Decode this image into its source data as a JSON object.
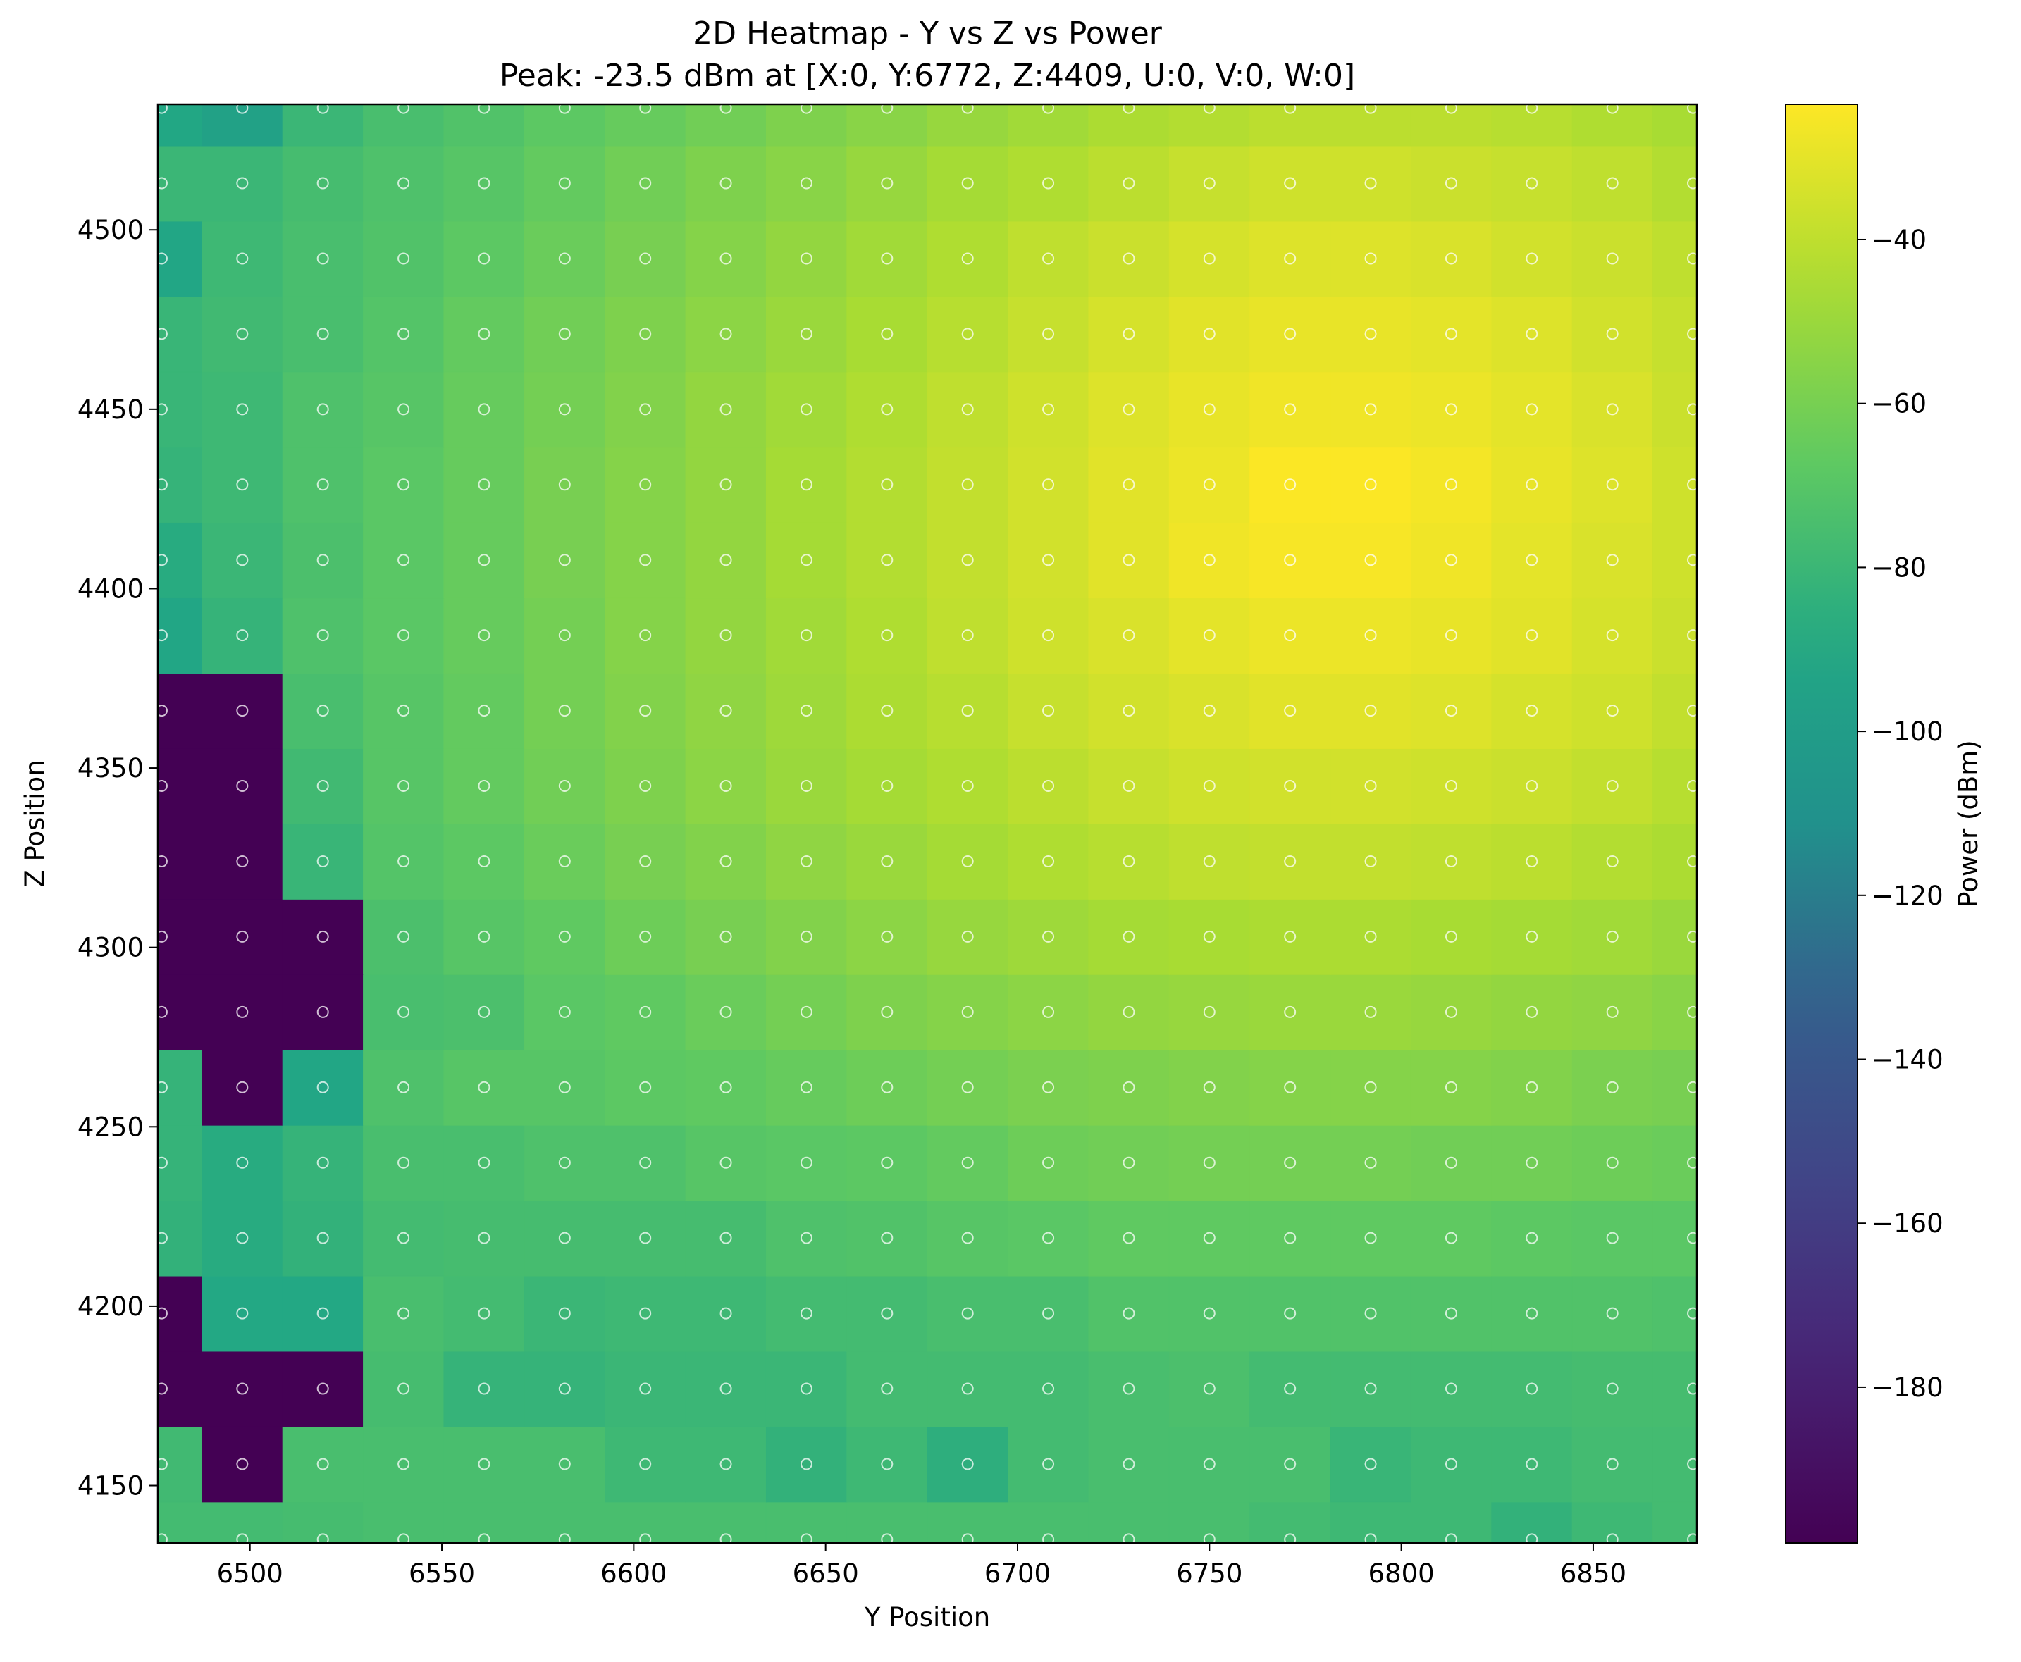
{
  "chart_data": {
    "type": "heatmap",
    "title": "2D Heatmap - Y vs Z vs Power",
    "subtitle": "Peak: -23.5 dBm at [X:0, Y:6772, Z:4409, U:0, V:0, W:0]",
    "xlabel": "Y Position",
    "ylabel": "Z Position",
    "colorbar_label": "Power (dBm)",
    "colormap": "viridis",
    "x_ticks": [
      6500,
      6550,
      6600,
      6650,
      6700,
      6750,
      6800,
      6850
    ],
    "y_ticks": [
      4150,
      4200,
      4250,
      4300,
      4350,
      4400,
      4450,
      4500
    ],
    "colorbar_ticks": [
      -40,
      -60,
      -80,
      -100,
      -120,
      -140,
      -160,
      -180
    ],
    "xlim": [
      6476,
      6877
    ],
    "ylim": [
      4134,
      4535
    ],
    "clim": [
      -199,
      -23.5
    ],
    "markers": "white hollow circles at each sample point",
    "x": [
      6477,
      6498,
      6519,
      6540,
      6561,
      6582,
      6603,
      6624,
      6645,
      6666,
      6687,
      6708,
      6729,
      6750,
      6771,
      6792,
      6813,
      6834,
      6855,
      6876
    ],
    "y": [
      4135,
      4156,
      4177,
      4198,
      4219,
      4240,
      4261,
      4282,
      4303,
      4324,
      4345,
      4366,
      4387,
      4408,
      4429,
      4450,
      4471,
      4492,
      4513,
      4534
    ],
    "values": [
      [
        -77,
        -77,
        -76,
        -75,
        -75,
        -75,
        -75,
        -75,
        -75,
        -75,
        -75,
        -75,
        -75,
        -75,
        -77,
        -79,
        -79,
        -83,
        -79,
        -77
      ],
      [
        -78,
        -199,
        -75,
        -75,
        -75,
        -75,
        -79,
        -79,
        -83,
        -79,
        -85,
        -77,
        -75,
        -75,
        -75,
        -81,
        -79,
        -79,
        -77,
        -77
      ],
      [
        -199,
        -199,
        -199,
        -76,
        -82,
        -82,
        -80,
        -80,
        -80,
        -77,
        -77,
        -77,
        -75,
        -74,
        -77,
        -77,
        -77,
        -77,
        -76,
        -76
      ],
      [
        -199,
        -89,
        -89,
        -75,
        -77,
        -80,
        -79,
        -79,
        -77,
        -77,
        -75,
        -75,
        -72,
        -72,
        -72,
        -72,
        -72,
        -72,
        -72,
        -73
      ],
      [
        -83,
        -87,
        -83,
        -77,
        -76,
        -76,
        -76,
        -76,
        -73,
        -72,
        -70,
        -69,
        -67,
        -67,
        -67,
        -67,
        -67,
        -68,
        -69,
        -69
      ],
      [
        -82,
        -87,
        -82,
        -75,
        -75,
        -73,
        -73,
        -70,
        -69,
        -68,
        -66,
        -63,
        -62,
        -61,
        -61,
        -61,
        -62,
        -62,
        -63,
        -64
      ],
      [
        -82,
        -199,
        -91,
        -73,
        -70,
        -70,
        -68,
        -67,
        -65,
        -63,
        -61,
        -59,
        -58,
        -57,
        -56,
        -56,
        -56,
        -57,
        -59,
        -60
      ],
      [
        -199,
        -199,
        -199,
        -75,
        -74,
        -69,
        -67,
        -64,
        -61,
        -58,
        -56,
        -54,
        -52,
        -51,
        -50,
        -50,
        -51,
        -52,
        -53,
        -55
      ],
      [
        -199,
        -199,
        -199,
        -74,
        -70,
        -67,
        -63,
        -60,
        -57,
        -54,
        -51,
        -49,
        -47,
        -46,
        -45,
        -45,
        -46,
        -47,
        -48,
        -50
      ],
      [
        -199,
        -199,
        -81,
        -71,
        -68,
        -64,
        -60,
        -57,
        -53,
        -50,
        -47,
        -44,
        -42,
        -40,
        -39,
        -39,
        -40,
        -41,
        -43,
        -45
      ],
      [
        -199,
        -199,
        -78,
        -70,
        -66,
        -62,
        -58,
        -54,
        -50,
        -47,
        -44,
        -41,
        -38,
        -36,
        -35,
        -35,
        -36,
        -37,
        -39,
        -42
      ],
      [
        -199,
        -199,
        -75,
        -70,
        -66,
        -61,
        -57,
        -53,
        -49,
        -45,
        -42,
        -38,
        -35,
        -33,
        -31,
        -31,
        -32,
        -34,
        -36,
        -39
      ],
      [
        -91,
        -82,
        -73,
        -69,
        -65,
        -61,
        -56,
        -52,
        -48,
        -44,
        -40,
        -36,
        -33,
        -30,
        -28,
        -28,
        -29,
        -31,
        -34,
        -37
      ],
      [
        -87,
        -80,
        -74,
        -69,
        -65,
        -60,
        -56,
        -52,
        -47,
        -43,
        -39,
        -35,
        -31,
        -27,
        -25,
        -25,
        -27,
        -30,
        -33,
        -36
      ],
      [
        -82,
        -79,
        -73,
        -69,
        -65,
        -60,
        -56,
        -52,
        -47,
        -43,
        -39,
        -35,
        -31,
        -28,
        -24,
        -24,
        -26,
        -29,
        -32,
        -36
      ],
      [
        -81,
        -79,
        -73,
        -70,
        -65,
        -61,
        -57,
        -52,
        -48,
        -44,
        -40,
        -36,
        -32,
        -29,
        -27,
        -27,
        -28,
        -30,
        -33,
        -37
      ],
      [
        -81,
        -78,
        -75,
        -71,
        -66,
        -62,
        -58,
        -54,
        -50,
        -46,
        -42,
        -38,
        -34,
        -31,
        -29,
        -29,
        -30,
        -32,
        -35,
        -38
      ],
      [
        -91,
        -79,
        -75,
        -72,
        -68,
        -64,
        -60,
        -56,
        -52,
        -48,
        -44,
        -40,
        -37,
        -34,
        -32,
        -32,
        -33,
        -35,
        -37,
        -40
      ],
      [
        -80,
        -80,
        -76,
        -73,
        -70,
        -66,
        -62,
        -58,
        -55,
        -51,
        -47,
        -44,
        -41,
        -38,
        -36,
        -36,
        -37,
        -38,
        -40,
        -43
      ],
      [
        -90,
        -96,
        -80,
        -75,
        -72,
        -68,
        -65,
        -62,
        -58,
        -55,
        -51,
        -48,
        -45,
        -43,
        -41,
        -41,
        -41,
        -42,
        -44,
        -46
      ]
    ]
  }
}
